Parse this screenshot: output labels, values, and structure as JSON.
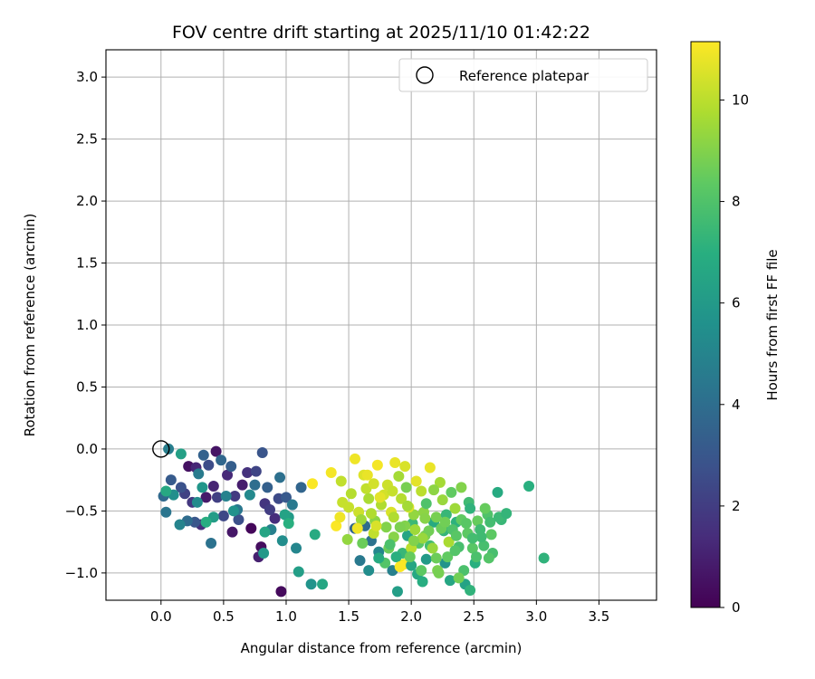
{
  "chart_data": {
    "type": "scatter",
    "title": "FOV centre drift starting at 2025/11/10 01:42:22",
    "xlabel": "Angular distance from reference (arcmin)",
    "ylabel": "Rotation from reference (arcmin)",
    "xlim": [
      -0.44,
      3.96
    ],
    "ylim": [
      -1.22,
      3.22
    ],
    "xticks": [
      "0.0",
      "0.5",
      "1.0",
      "1.5",
      "2.0",
      "2.5",
      "3.0",
      "3.5"
    ],
    "yticks": [
      "−1.0",
      "−0.5",
      "0.0",
      "0.5",
      "1.0",
      "1.5",
      "2.0",
      "2.5",
      "3.0"
    ],
    "grid": true,
    "legend": {
      "position": "top-right",
      "label": "Reference platepar",
      "marker": "open-circle"
    },
    "reference_point": {
      "x": 0.0,
      "y": 0.0
    },
    "colorbar": {
      "label": "Hours from first FF file",
      "min": 0,
      "max": 11.15,
      "ticks": [
        "0",
        "2",
        "4",
        "6",
        "8",
        "10"
      ],
      "colormap": "viridis"
    },
    "points": [
      {
        "x": 0.72,
        "y": -0.64,
        "h": 0.2
      },
      {
        "x": 0.96,
        "y": -1.15,
        "h": 0.3
      },
      {
        "x": 0.8,
        "y": -0.79,
        "h": 0.4
      },
      {
        "x": 0.22,
        "y": -0.14,
        "h": 0.5
      },
      {
        "x": 0.44,
        "y": -0.02,
        "h": 0.6
      },
      {
        "x": 0.57,
        "y": -0.67,
        "h": 0.7
      },
      {
        "x": 0.36,
        "y": -0.39,
        "h": 0.8
      },
      {
        "x": 0.65,
        "y": -0.29,
        "h": 0.9
      },
      {
        "x": 0.78,
        "y": -0.87,
        "h": 1.0
      },
      {
        "x": 0.42,
        "y": -0.3,
        "h": 1.1
      },
      {
        "x": 0.28,
        "y": -0.15,
        "h": 1.2
      },
      {
        "x": 0.53,
        "y": -0.21,
        "h": 1.3
      },
      {
        "x": 0.91,
        "y": -0.56,
        "h": 1.4
      },
      {
        "x": 0.32,
        "y": -0.61,
        "h": 1.5
      },
      {
        "x": 0.69,
        "y": -0.19,
        "h": 1.6
      },
      {
        "x": 0.83,
        "y": -0.44,
        "h": 1.7
      },
      {
        "x": 0.25,
        "y": -0.43,
        "h": 1.8
      },
      {
        "x": 0.59,
        "y": -0.38,
        "h": 1.9
      },
      {
        "x": 0.87,
        "y": -0.49,
        "h": 2.0
      },
      {
        "x": 0.45,
        "y": -0.39,
        "h": 2.1
      },
      {
        "x": 0.19,
        "y": -0.36,
        "h": 2.2
      },
      {
        "x": 0.76,
        "y": -0.18,
        "h": 2.3
      },
      {
        "x": 0.5,
        "y": -0.54,
        "h": 2.4
      },
      {
        "x": 0.94,
        "y": -0.4,
        "h": 2.5
      },
      {
        "x": 0.38,
        "y": -0.13,
        "h": 2.6
      },
      {
        "x": 0.62,
        "y": -0.57,
        "h": 2.7
      },
      {
        "x": 0.16,
        "y": -0.31,
        "h": 2.8
      },
      {
        "x": 0.81,
        "y": -0.03,
        "h": 2.9
      },
      {
        "x": 0.27,
        "y": -0.59,
        "h": 3.0
      },
      {
        "x": 1.0,
        "y": -0.39,
        "h": 3.1
      },
      {
        "x": 0.08,
        "y": -0.25,
        "h": 3.2
      },
      {
        "x": 0.56,
        "y": -0.14,
        "h": 3.3
      },
      {
        "x": 0.85,
        "y": -0.31,
        "h": 3.4
      },
      {
        "x": 0.34,
        "y": -0.05,
        "h": 3.5
      },
      {
        "x": 1.12,
        "y": -0.31,
        "h": 3.6
      },
      {
        "x": 0.48,
        "y": -0.09,
        "h": 3.7
      },
      {
        "x": 0.02,
        "y": -0.38,
        "h": 3.8
      },
      {
        "x": 0.21,
        "y": -0.58,
        "h": 3.9
      },
      {
        "x": 0.75,
        "y": -0.29,
        "h": 4.0
      },
      {
        "x": 0.95,
        "y": -0.23,
        "h": 4.1
      },
      {
        "x": 0.4,
        "y": -0.76,
        "h": 4.2
      },
      {
        "x": 0.04,
        "y": -0.51,
        "h": 4.3
      },
      {
        "x": 0.61,
        "y": -0.49,
        "h": 4.4
      },
      {
        "x": 1.05,
        "y": -0.45,
        "h": 4.5
      },
      {
        "x": 0.3,
        "y": -0.2,
        "h": 4.6
      },
      {
        "x": 0.06,
        "y": 0.0,
        "h": 4.7
      },
      {
        "x": 0.88,
        "y": -0.65,
        "h": 4.8
      },
      {
        "x": 0.52,
        "y": -0.38,
        "h": 4.9
      },
      {
        "x": 0.15,
        "y": -0.61,
        "h": 5.0
      },
      {
        "x": 1.08,
        "y": -0.8,
        "h": 5.1
      },
      {
        "x": 0.71,
        "y": -0.37,
        "h": 5.2
      },
      {
        "x": 0.29,
        "y": -0.43,
        "h": 5.3
      },
      {
        "x": 0.97,
        "y": -0.74,
        "h": 5.4
      },
      {
        "x": 0.1,
        "y": -0.37,
        "h": 5.5
      },
      {
        "x": 0.58,
        "y": -0.5,
        "h": 5.6
      },
      {
        "x": 1.2,
        "y": -1.09,
        "h": 5.7
      },
      {
        "x": 0.33,
        "y": -0.31,
        "h": 5.8
      },
      {
        "x": 0.82,
        "y": -0.84,
        "h": 5.9
      },
      {
        "x": 1.02,
        "y": -0.55,
        "h": 6.0
      },
      {
        "x": 0.42,
        "y": -0.55,
        "h": 6.1
      },
      {
        "x": 1.1,
        "y": -0.99,
        "h": 6.2
      },
      {
        "x": 0.16,
        "y": -0.04,
        "h": 6.3
      },
      {
        "x": 0.99,
        "y": -0.53,
        "h": 6.4
      },
      {
        "x": 0.83,
        "y": -0.67,
        "h": 6.5
      },
      {
        "x": 1.29,
        "y": -1.09,
        "h": 6.6
      },
      {
        "x": 0.04,
        "y": -0.34,
        "h": 6.7
      },
      {
        "x": 1.23,
        "y": -0.69,
        "h": 6.8
      },
      {
        "x": 0.36,
        "y": -0.59,
        "h": 6.9
      },
      {
        "x": 1.02,
        "y": -0.6,
        "h": 7.0
      },
      {
        "x": 1.55,
        "y": -0.64,
        "h": 3.6
      },
      {
        "x": 1.63,
        "y": -0.62,
        "h": 3.9
      },
      {
        "x": 1.68,
        "y": -0.74,
        "h": 4.2
      },
      {
        "x": 1.59,
        "y": -0.9,
        "h": 4.5
      },
      {
        "x": 1.85,
        "y": -0.98,
        "h": 4.8
      },
      {
        "x": 1.74,
        "y": -0.83,
        "h": 5.1
      },
      {
        "x": 1.66,
        "y": -0.98,
        "h": 5.4
      },
      {
        "x": 2.27,
        "y": -0.92,
        "h": 5.7
      },
      {
        "x": 2.12,
        "y": -0.89,
        "h": 6.0
      },
      {
        "x": 1.89,
        "y": -1.15,
        "h": 6.2
      },
      {
        "x": 2.43,
        "y": -1.09,
        "h": 6.4
      },
      {
        "x": 1.97,
        "y": -0.7,
        "h": 6.5
      },
      {
        "x": 2.31,
        "y": -1.06,
        "h": 6.6
      },
      {
        "x": 2.05,
        "y": -1.01,
        "h": 6.7
      },
      {
        "x": 2.18,
        "y": -0.59,
        "h": 6.8
      },
      {
        "x": 2.09,
        "y": -1.07,
        "h": 6.9
      },
      {
        "x": 2.51,
        "y": -0.92,
        "h": 7.0
      },
      {
        "x": 2.36,
        "y": -0.59,
        "h": 7.1
      },
      {
        "x": 2.47,
        "y": -1.14,
        "h": 7.2
      },
      {
        "x": 2.26,
        "y": -0.66,
        "h": 7.3
      },
      {
        "x": 1.93,
        "y": -0.84,
        "h": 7.4
      },
      {
        "x": 2.01,
        "y": -0.6,
        "h": 7.5
      },
      {
        "x": 2.46,
        "y": -0.43,
        "h": 7.6
      },
      {
        "x": 2.15,
        "y": -0.78,
        "h": 7.7
      },
      {
        "x": 2.58,
        "y": -0.78,
        "h": 7.8
      },
      {
        "x": 2.42,
        "y": -0.98,
        "h": 7.9
      },
      {
        "x": 2.33,
        "y": -0.65,
        "h": 8.0
      },
      {
        "x": 1.79,
        "y": -0.92,
        "h": 8.1
      },
      {
        "x": 2.06,
        "y": -0.76,
        "h": 8.2
      },
      {
        "x": 2.64,
        "y": -0.69,
        "h": 8.3
      },
      {
        "x": 2.29,
        "y": -0.87,
        "h": 8.4
      },
      {
        "x": 2.53,
        "y": -0.58,
        "h": 8.5
      },
      {
        "x": 1.82,
        "y": -0.8,
        "h": 8.6
      },
      {
        "x": 2.38,
        "y": -1.04,
        "h": 8.7
      },
      {
        "x": 2.2,
        "y": -0.55,
        "h": 8.8
      },
      {
        "x": 2.69,
        "y": -0.35,
        "h": 6.8
      },
      {
        "x": 2.94,
        "y": -0.3,
        "h": 7.0
      },
      {
        "x": 3.06,
        "y": -0.88,
        "h": 7.2
      },
      {
        "x": 2.72,
        "y": -0.57,
        "h": 7.4
      },
      {
        "x": 2.56,
        "y": -0.71,
        "h": 7.6
      },
      {
        "x": 2.65,
        "y": -0.84,
        "h": 7.8
      },
      {
        "x": 2.61,
        "y": -0.53,
        "h": 8.0
      },
      {
        "x": 2.49,
        "y": -0.8,
        "h": 8.2
      },
      {
        "x": 2.4,
        "y": -0.57,
        "h": 8.4
      },
      {
        "x": 2.24,
        "y": -0.64,
        "h": 8.6
      },
      {
        "x": 2.11,
        "y": -0.7,
        "h": 8.8
      },
      {
        "x": 1.95,
        "y": -0.62,
        "h": 9.0
      },
      {
        "x": 1.86,
        "y": -0.71,
        "h": 9.1
      },
      {
        "x": 1.71,
        "y": -0.58,
        "h": 9.2
      },
      {
        "x": 2.02,
        "y": -0.53,
        "h": 9.3
      },
      {
        "x": 2.17,
        "y": -0.8,
        "h": 9.4
      },
      {
        "x": 2.35,
        "y": -0.48,
        "h": 9.5
      },
      {
        "x": 2.23,
        "y": -0.27,
        "h": 9.6
      },
      {
        "x": 2.3,
        "y": -0.75,
        "h": 9.7
      },
      {
        "x": 1.76,
        "y": -0.45,
        "h": 9.8
      },
      {
        "x": 1.92,
        "y": -0.4,
        "h": 9.9
      },
      {
        "x": 2.08,
        "y": -0.34,
        "h": 10.0
      },
      {
        "x": 1.64,
        "y": -0.32,
        "h": 10.1
      },
      {
        "x": 1.5,
        "y": -0.47,
        "h": 10.2
      },
      {
        "x": 1.58,
        "y": -0.51,
        "h": 10.3
      },
      {
        "x": 1.7,
        "y": -0.28,
        "h": 10.4
      },
      {
        "x": 1.84,
        "y": -0.51,
        "h": 10.5
      },
      {
        "x": 1.98,
        "y": -0.47,
        "h": 10.6
      },
      {
        "x": 2.04,
        "y": -0.26,
        "h": 10.7
      },
      {
        "x": 1.87,
        "y": -0.11,
        "h": 10.8
      },
      {
        "x": 1.55,
        "y": -0.08,
        "h": 10.9
      },
      {
        "x": 1.73,
        "y": -0.13,
        "h": 11.0
      },
      {
        "x": 1.4,
        "y": -0.62,
        "h": 11.1
      },
      {
        "x": 1.21,
        "y": -0.28,
        "h": 11.1
      },
      {
        "x": 1.94,
        "y": -0.93,
        "h": 11.0
      },
      {
        "x": 2.15,
        "y": -0.15,
        "h": 10.8
      },
      {
        "x": 1.62,
        "y": -0.21,
        "h": 10.6
      },
      {
        "x": 1.78,
        "y": -0.37,
        "h": 10.4
      },
      {
        "x": 1.45,
        "y": -0.43,
        "h": 10.2
      },
      {
        "x": 2.0,
        "y": -0.8,
        "h": 10.0
      },
      {
        "x": 1.68,
        "y": -0.52,
        "h": 9.8
      },
      {
        "x": 1.9,
        "y": -0.22,
        "h": 9.6
      },
      {
        "x": 2.25,
        "y": -0.41,
        "h": 9.4
      },
      {
        "x": 2.1,
        "y": -0.51,
        "h": 9.2
      },
      {
        "x": 1.8,
        "y": -0.63,
        "h": 9.0
      },
      {
        "x": 1.96,
        "y": -0.31,
        "h": 8.8
      },
      {
        "x": 2.2,
        "y": -0.88,
        "h": 8.6
      },
      {
        "x": 2.32,
        "y": -0.35,
        "h": 8.4
      },
      {
        "x": 2.44,
        "y": -0.6,
        "h": 8.2
      },
      {
        "x": 2.12,
        "y": -0.44,
        "h": 8.0
      },
      {
        "x": 2.38,
        "y": -0.79,
        "h": 7.8
      },
      {
        "x": 2.55,
        "y": -0.65,
        "h": 7.6
      },
      {
        "x": 2.28,
        "y": -0.53,
        "h": 7.4
      },
      {
        "x": 2.47,
        "y": -0.48,
        "h": 7.2
      },
      {
        "x": 1.88,
        "y": -0.87,
        "h": 7.0
      },
      {
        "x": 1.74,
        "y": -0.88,
        "h": 6.8
      },
      {
        "x": 2.0,
        "y": -0.94,
        "h": 6.6
      },
      {
        "x": 2.21,
        "y": -0.98,
        "h": 8.9
      },
      {
        "x": 2.14,
        "y": -0.66,
        "h": 8.7
      },
      {
        "x": 1.99,
        "y": -0.87,
        "h": 8.5
      },
      {
        "x": 2.08,
        "y": -0.98,
        "h": 8.3
      },
      {
        "x": 2.35,
        "y": -0.82,
        "h": 8.1
      },
      {
        "x": 1.83,
        "y": -0.77,
        "h": 7.9
      },
      {
        "x": 2.63,
        "y": -0.59,
        "h": 7.7
      },
      {
        "x": 1.6,
        "y": -0.57,
        "h": 9.5
      },
      {
        "x": 1.66,
        "y": -0.4,
        "h": 9.7
      },
      {
        "x": 1.52,
        "y": -0.36,
        "h": 9.9
      },
      {
        "x": 1.44,
        "y": -0.26,
        "h": 10.1
      },
      {
        "x": 1.81,
        "y": -0.29,
        "h": 10.3
      },
      {
        "x": 1.95,
        "y": -0.14,
        "h": 10.5
      },
      {
        "x": 1.75,
        "y": -0.39,
        "h": 10.7
      },
      {
        "x": 1.57,
        "y": -0.64,
        "h": 10.9
      },
      {
        "x": 1.7,
        "y": -0.68,
        "h": 10.1
      },
      {
        "x": 1.86,
        "y": -0.55,
        "h": 9.8
      },
      {
        "x": 2.03,
        "y": -0.65,
        "h": 9.5
      },
      {
        "x": 2.18,
        "y": -0.33,
        "h": 9.2
      },
      {
        "x": 2.4,
        "y": -0.31,
        "h": 9.0
      },
      {
        "x": 1.49,
        "y": -0.73,
        "h": 9.3
      },
      {
        "x": 1.61,
        "y": -0.76,
        "h": 8.6
      },
      {
        "x": 1.91,
        "y": -0.63,
        "h": 8.9
      },
      {
        "x": 2.11,
        "y": -0.56,
        "h": 9.1
      },
      {
        "x": 2.27,
        "y": -0.59,
        "h": 8.7
      },
      {
        "x": 2.45,
        "y": -0.68,
        "h": 8.3
      },
      {
        "x": 2.52,
        "y": -0.87,
        "h": 7.9
      },
      {
        "x": 2.62,
        "y": -0.88,
        "h": 8.1
      },
      {
        "x": 2.59,
        "y": -0.48,
        "h": 8.5
      },
      {
        "x": 2.7,
        "y": -0.55,
        "h": 7.5
      },
      {
        "x": 2.76,
        "y": -0.52,
        "h": 7.3
      },
      {
        "x": 2.22,
        "y": -1.0,
        "h": 8.8
      },
      {
        "x": 2.09,
        "y": -0.72,
        "h": 9.4
      },
      {
        "x": 1.97,
        "y": -0.46,
        "h": 9.6
      },
      {
        "x": 1.85,
        "y": -0.34,
        "h": 10.2
      },
      {
        "x": 1.72,
        "y": -0.62,
        "h": 10.5
      },
      {
        "x": 1.65,
        "y": -0.21,
        "h": 10.8
      },
      {
        "x": 1.43,
        "y": -0.55,
        "h": 10.9
      },
      {
        "x": 1.36,
        "y": -0.19,
        "h": 11.0
      },
      {
        "x": 1.91,
        "y": -0.95,
        "h": 11.1
      },
      {
        "x": 2.02,
        "y": -0.74,
        "h": 9.0
      },
      {
        "x": 2.36,
        "y": -0.7,
        "h": 8.2
      },
      {
        "x": 2.49,
        "y": -0.72,
        "h": 7.7
      }
    ]
  }
}
